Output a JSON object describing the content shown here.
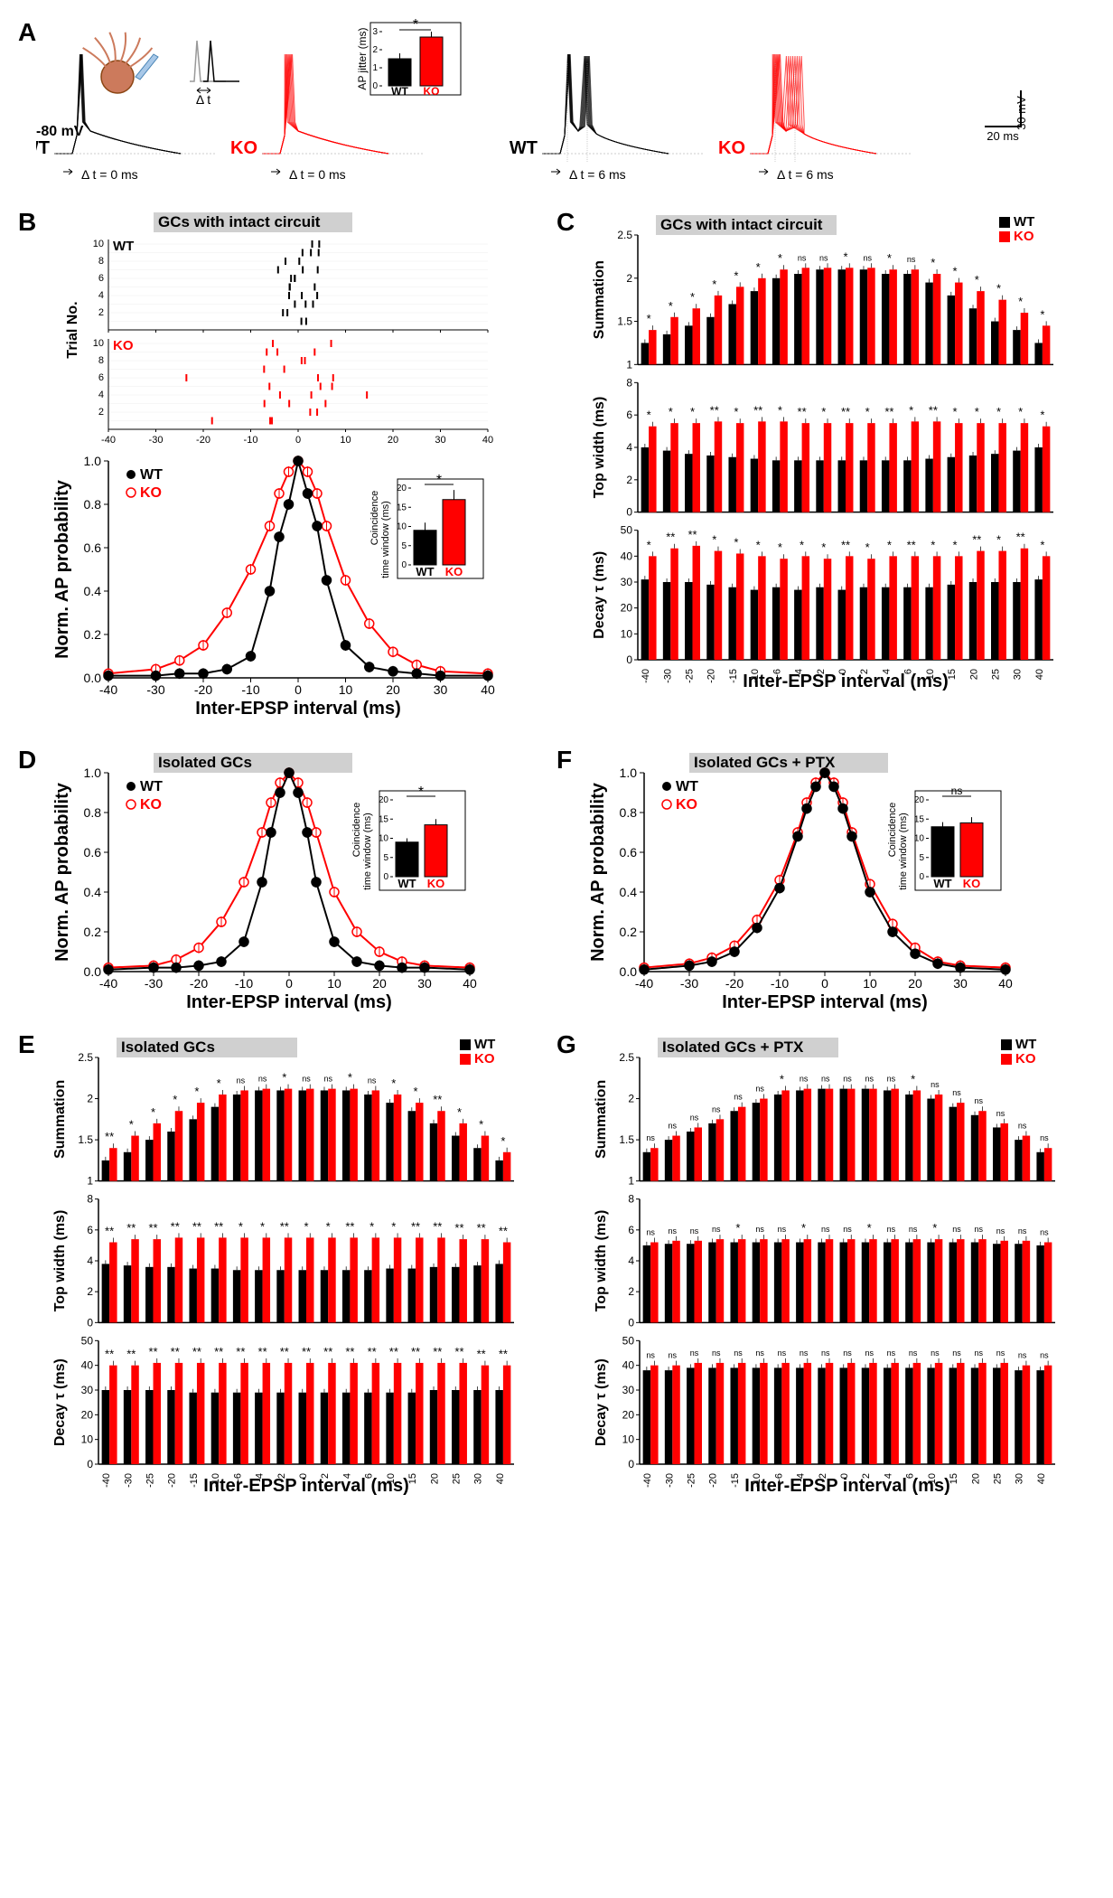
{
  "colors": {
    "wt": "#000000",
    "ko": "#ff0000",
    "bg": "#ffffff",
    "grid": "#e0e0e0",
    "titlebg": "#d0d0d0",
    "neuron": "#cc7a5c"
  },
  "panelA": {
    "label": "A",
    "vm_label": "-80 mV",
    "genotypes": [
      "WT",
      "KO"
    ],
    "dt_labels": [
      "Δ t = 0 ms",
      "Δ t = 0 ms",
      "Δ t = 6 ms",
      "Δ t = 6 ms"
    ],
    "inset_diagram_label": "Δ t",
    "scale_x": "20 ms",
    "scale_y": "30 mV",
    "jitter_bar": {
      "ylabel": "AP jitter (ms)",
      "categories": [
        "WT",
        "KO"
      ],
      "values": [
        1.5,
        2.7
      ],
      "errors": [
        0.3,
        0.3
      ],
      "ymax": 3,
      "sig": "*",
      "colors": [
        "#000000",
        "#ff0000"
      ]
    }
  },
  "panelB": {
    "label": "B",
    "title": "GCs with intact circuit",
    "raster_ylabel": "Trial No.",
    "raster_xlim": [
      -40,
      40
    ],
    "raster_yticks": [
      2,
      4,
      6,
      8,
      10
    ],
    "prob_ylabel": "Norm. AP probability",
    "prob_xlabel": "Inter-EPSP interval (ms)",
    "xticks": [
      -40,
      -30,
      -20,
      -10,
      0,
      10,
      20,
      30,
      40
    ],
    "yticks": [
      0.0,
      0.2,
      0.4,
      0.6,
      0.8,
      1.0
    ],
    "wt_points": [
      {
        "x": -40,
        "y": 0.01
      },
      {
        "x": -30,
        "y": 0.01
      },
      {
        "x": -25,
        "y": 0.02
      },
      {
        "x": -20,
        "y": 0.02
      },
      {
        "x": -15,
        "y": 0.04
      },
      {
        "x": -10,
        "y": 0.1
      },
      {
        "x": -6,
        "y": 0.4
      },
      {
        "x": -4,
        "y": 0.65
      },
      {
        "x": -2,
        "y": 0.8
      },
      {
        "x": 0,
        "y": 1.0
      },
      {
        "x": 2,
        "y": 0.85
      },
      {
        "x": 4,
        "y": 0.7
      },
      {
        "x": 6,
        "y": 0.45
      },
      {
        "x": 10,
        "y": 0.15
      },
      {
        "x": 15,
        "y": 0.05
      },
      {
        "x": 20,
        "y": 0.03
      },
      {
        "x": 25,
        "y": 0.02
      },
      {
        "x": 30,
        "y": 0.01
      },
      {
        "x": 40,
        "y": 0.01
      }
    ],
    "ko_points": [
      {
        "x": -40,
        "y": 0.02
      },
      {
        "x": -30,
        "y": 0.04
      },
      {
        "x": -25,
        "y": 0.08
      },
      {
        "x": -20,
        "y": 0.15
      },
      {
        "x": -15,
        "y": 0.3
      },
      {
        "x": -10,
        "y": 0.5
      },
      {
        "x": -6,
        "y": 0.7
      },
      {
        "x": -4,
        "y": 0.85
      },
      {
        "x": -2,
        "y": 0.95
      },
      {
        "x": 0,
        "y": 1.0
      },
      {
        "x": 2,
        "y": 0.95
      },
      {
        "x": 4,
        "y": 0.85
      },
      {
        "x": 6,
        "y": 0.7
      },
      {
        "x": 10,
        "y": 0.45
      },
      {
        "x": 15,
        "y": 0.25
      },
      {
        "x": 20,
        "y": 0.12
      },
      {
        "x": 25,
        "y": 0.06
      },
      {
        "x": 30,
        "y": 0.03
      },
      {
        "x": 40,
        "y": 0.02
      }
    ],
    "inset_bar": {
      "ylabel": "Coincidence\ntime window (ms)",
      "categories": [
        "WT",
        "KO"
      ],
      "values": [
        9,
        17
      ],
      "errors": [
        2,
        2.5
      ],
      "ymax": 20,
      "sig": "*",
      "colors": [
        "#000000",
        "#ff0000"
      ]
    }
  },
  "panelC": {
    "label": "C",
    "title": "GCs with intact circuit",
    "xlabel": "Inter-EPSP interval (ms)",
    "categories": [
      "-40",
      "-30",
      "-25",
      "-20",
      "-15",
      "-10",
      "-6",
      "-4",
      "-2",
      "0",
      "2",
      "4",
      "6",
      "10",
      "15",
      "20",
      "25",
      "30",
      "40"
    ],
    "summation": {
      "ylabel": "Summation",
      "yticks": [
        1.0,
        1.5,
        2.0,
        2.5
      ],
      "wt": [
        1.25,
        1.35,
        1.45,
        1.55,
        1.7,
        1.85,
        2.0,
        2.05,
        2.1,
        2.1,
        2.1,
        2.05,
        2.05,
        1.95,
        1.8,
        1.65,
        1.5,
        1.4,
        1.25
      ],
      "ko": [
        1.4,
        1.55,
        1.65,
        1.8,
        1.9,
        2.0,
        2.1,
        2.12,
        2.12,
        2.12,
        2.12,
        2.1,
        2.1,
        2.05,
        1.95,
        1.85,
        1.75,
        1.6,
        1.45
      ],
      "sig": [
        "*",
        "*",
        "*",
        "*",
        "*",
        "*",
        "*",
        "ns",
        "ns",
        "*",
        "ns",
        "*",
        "ns",
        "*",
        "*",
        "*",
        "*",
        "*",
        "*"
      ]
    },
    "topwidth": {
      "ylabel": "Top width (ms)",
      "yticks": [
        0,
        2,
        4,
        6,
        8
      ],
      "wt": [
        4.0,
        3.8,
        3.6,
        3.5,
        3.4,
        3.3,
        3.2,
        3.2,
        3.2,
        3.2,
        3.2,
        3.2,
        3.2,
        3.3,
        3.4,
        3.5,
        3.6,
        3.8,
        4.0
      ],
      "ko": [
        5.3,
        5.5,
        5.5,
        5.6,
        5.5,
        5.6,
        5.6,
        5.5,
        5.5,
        5.5,
        5.5,
        5.5,
        5.6,
        5.6,
        5.5,
        5.5,
        5.5,
        5.5,
        5.3
      ],
      "sig": [
        "*",
        "*",
        "*",
        "**",
        "*",
        "**",
        "*",
        "**",
        "*",
        "**",
        "*",
        "**",
        "*",
        "**",
        "*",
        "*",
        "*",
        "*",
        "*"
      ]
    },
    "decay": {
      "ylabel": "Decay τ (ms)",
      "yticks": [
        0,
        10,
        20,
        30,
        40,
        50
      ],
      "wt": [
        31,
        30,
        30,
        29,
        28,
        27,
        28,
        27,
        28,
        27,
        28,
        28,
        28,
        28,
        29,
        30,
        30,
        30,
        31
      ],
      "ko": [
        40,
        43,
        44,
        42,
        41,
        40,
        39,
        40,
        39,
        40,
        39,
        40,
        40,
        40,
        40,
        42,
        42,
        43,
        40
      ],
      "sig": [
        "*",
        "**",
        "**",
        "*",
        "*",
        "*",
        "*",
        "*",
        "*",
        "**",
        "*",
        "*",
        "**",
        "*",
        "*",
        "**",
        "*",
        "**",
        "*"
      ]
    }
  },
  "panelD": {
    "label": "D",
    "title": "Isolated GCs",
    "xlabel": "Inter-EPSP interval (ms)",
    "ylabel": "Norm. AP probability",
    "xticks": [
      -40,
      -30,
      -20,
      -10,
      0,
      10,
      20,
      30,
      40
    ],
    "yticks": [
      0.0,
      0.2,
      0.4,
      0.6,
      0.8,
      1.0
    ],
    "wt_points": [
      {
        "x": -40,
        "y": 0.01
      },
      {
        "x": -30,
        "y": 0.02
      },
      {
        "x": -25,
        "y": 0.02
      },
      {
        "x": -20,
        "y": 0.03
      },
      {
        "x": -15,
        "y": 0.05
      },
      {
        "x": -10,
        "y": 0.15
      },
      {
        "x": -6,
        "y": 0.45
      },
      {
        "x": -4,
        "y": 0.7
      },
      {
        "x": -2,
        "y": 0.9
      },
      {
        "x": 0,
        "y": 1.0
      },
      {
        "x": 2,
        "y": 0.9
      },
      {
        "x": 4,
        "y": 0.7
      },
      {
        "x": 6,
        "y": 0.45
      },
      {
        "x": 10,
        "y": 0.15
      },
      {
        "x": 15,
        "y": 0.05
      },
      {
        "x": 20,
        "y": 0.03
      },
      {
        "x": 25,
        "y": 0.02
      },
      {
        "x": 30,
        "y": 0.02
      },
      {
        "x": 40,
        "y": 0.01
      }
    ],
    "ko_points": [
      {
        "x": -40,
        "y": 0.02
      },
      {
        "x": -30,
        "y": 0.03
      },
      {
        "x": -25,
        "y": 0.06
      },
      {
        "x": -20,
        "y": 0.12
      },
      {
        "x": -15,
        "y": 0.25
      },
      {
        "x": -10,
        "y": 0.45
      },
      {
        "x": -6,
        "y": 0.7
      },
      {
        "x": -4,
        "y": 0.85
      },
      {
        "x": -2,
        "y": 0.95
      },
      {
        "x": 0,
        "y": 1.0
      },
      {
        "x": 2,
        "y": 0.95
      },
      {
        "x": 4,
        "y": 0.85
      },
      {
        "x": 6,
        "y": 0.7
      },
      {
        "x": 10,
        "y": 0.4
      },
      {
        "x": 15,
        "y": 0.2
      },
      {
        "x": 20,
        "y": 0.1
      },
      {
        "x": 25,
        "y": 0.05
      },
      {
        "x": 30,
        "y": 0.03
      },
      {
        "x": 40,
        "y": 0.02
      }
    ],
    "inset_bar": {
      "ylabel": "Coincidence\ntime window (ms)",
      "categories": [
        "WT",
        "KO"
      ],
      "values": [
        9,
        13.5
      ],
      "errors": [
        1,
        1.5
      ],
      "ymax": 20,
      "sig": "*",
      "colors": [
        "#000000",
        "#ff0000"
      ]
    }
  },
  "panelE": {
    "label": "E",
    "title": "Isolated GCs",
    "xlabel": "Inter-EPSP interval (ms)",
    "categories": [
      "-40",
      "-30",
      "-25",
      "-20",
      "-15",
      "-10",
      "-6",
      "-4",
      "-2",
      "0",
      "2",
      "4",
      "6",
      "10",
      "15",
      "20",
      "25",
      "30",
      "40"
    ],
    "summation": {
      "ylabel": "Summation",
      "yticks": [
        1.0,
        1.5,
        2.0,
        2.5
      ],
      "wt": [
        1.25,
        1.35,
        1.5,
        1.6,
        1.75,
        1.9,
        2.05,
        2.1,
        2.1,
        2.1,
        2.1,
        2.1,
        2.05,
        1.95,
        1.85,
        1.7,
        1.55,
        1.4,
        1.25
      ],
      "ko": [
        1.4,
        1.55,
        1.7,
        1.85,
        1.95,
        2.05,
        2.1,
        2.12,
        2.12,
        2.12,
        2.12,
        2.12,
        2.1,
        2.05,
        1.95,
        1.85,
        1.7,
        1.55,
        1.35
      ],
      "sig": [
        "**",
        "*",
        "*",
        "*",
        "*",
        "*",
        "ns",
        "ns",
        "*",
        "ns",
        "ns",
        "*",
        "ns",
        "*",
        "*",
        "**",
        "*",
        "*",
        "*"
      ]
    },
    "topwidth": {
      "ylabel": "Top width (ms)",
      "yticks": [
        0,
        2,
        4,
        6,
        8
      ],
      "wt": [
        3.8,
        3.7,
        3.6,
        3.6,
        3.5,
        3.5,
        3.4,
        3.4,
        3.4,
        3.4,
        3.4,
        3.4,
        3.4,
        3.5,
        3.5,
        3.6,
        3.6,
        3.7,
        3.8
      ],
      "ko": [
        5.2,
        5.4,
        5.4,
        5.5,
        5.5,
        5.5,
        5.5,
        5.5,
        5.5,
        5.5,
        5.5,
        5.5,
        5.5,
        5.5,
        5.5,
        5.5,
        5.4,
        5.4,
        5.2
      ],
      "sig": [
        "**",
        "**",
        "**",
        "**",
        "**",
        "**",
        "*",
        "*",
        "**",
        "*",
        "*",
        "**",
        "*",
        "*",
        "**",
        "**",
        "**",
        "**",
        "**"
      ]
    },
    "decay": {
      "ylabel": "Decay τ (ms)",
      "yticks": [
        0,
        10,
        20,
        30,
        40,
        50
      ],
      "wt": [
        30,
        30,
        30,
        30,
        29,
        29,
        29,
        29,
        29,
        29,
        29,
        29,
        29,
        29,
        29,
        30,
        30,
        30,
        30
      ],
      "ko": [
        40,
        40,
        41,
        41,
        41,
        41,
        41,
        41,
        41,
        41,
        41,
        41,
        41,
        41,
        41,
        41,
        41,
        40,
        40
      ],
      "sig": [
        "**",
        "**",
        "**",
        "**",
        "**",
        "**",
        "**",
        "**",
        "**",
        "**",
        "**",
        "**",
        "**",
        "**",
        "**",
        "**",
        "**",
        "**",
        "**"
      ]
    }
  },
  "panelF": {
    "label": "F",
    "title": "Isolated GCs + PTX",
    "xlabel": "Inter-EPSP interval (ms)",
    "ylabel": "Norm. AP probability",
    "xticks": [
      -40,
      -30,
      -20,
      -10,
      0,
      10,
      20,
      30,
      40
    ],
    "yticks": [
      0.0,
      0.2,
      0.4,
      0.6,
      0.8,
      1.0
    ],
    "wt_points": [
      {
        "x": -40,
        "y": 0.01
      },
      {
        "x": -30,
        "y": 0.03
      },
      {
        "x": -25,
        "y": 0.05
      },
      {
        "x": -20,
        "y": 0.1
      },
      {
        "x": -15,
        "y": 0.22
      },
      {
        "x": -10,
        "y": 0.42
      },
      {
        "x": -6,
        "y": 0.68
      },
      {
        "x": -4,
        "y": 0.82
      },
      {
        "x": -2,
        "y": 0.93
      },
      {
        "x": 0,
        "y": 1.0
      },
      {
        "x": 2,
        "y": 0.93
      },
      {
        "x": 4,
        "y": 0.82
      },
      {
        "x": 6,
        "y": 0.68
      },
      {
        "x": 10,
        "y": 0.4
      },
      {
        "x": 15,
        "y": 0.2
      },
      {
        "x": 20,
        "y": 0.09
      },
      {
        "x": 25,
        "y": 0.04
      },
      {
        "x": 30,
        "y": 0.02
      },
      {
        "x": 40,
        "y": 0.01
      }
    ],
    "ko_points": [
      {
        "x": -40,
        "y": 0.02
      },
      {
        "x": -30,
        "y": 0.04
      },
      {
        "x": -25,
        "y": 0.07
      },
      {
        "x": -20,
        "y": 0.13
      },
      {
        "x": -15,
        "y": 0.26
      },
      {
        "x": -10,
        "y": 0.46
      },
      {
        "x": -6,
        "y": 0.7
      },
      {
        "x": -4,
        "y": 0.85
      },
      {
        "x": -2,
        "y": 0.95
      },
      {
        "x": 0,
        "y": 1.0
      },
      {
        "x": 2,
        "y": 0.95
      },
      {
        "x": 4,
        "y": 0.85
      },
      {
        "x": 6,
        "y": 0.7
      },
      {
        "x": 10,
        "y": 0.44
      },
      {
        "x": 15,
        "y": 0.24
      },
      {
        "x": 20,
        "y": 0.12
      },
      {
        "x": 25,
        "y": 0.05
      },
      {
        "x": 30,
        "y": 0.03
      },
      {
        "x": 40,
        "y": 0.02
      }
    ],
    "inset_bar": {
      "ylabel": "Coincidence\ntime window (ms)",
      "categories": [
        "WT",
        "KO"
      ],
      "values": [
        13,
        14
      ],
      "errors": [
        1.2,
        1.5
      ],
      "ymax": 20,
      "sig": "ns",
      "colors": [
        "#000000",
        "#ff0000"
      ]
    }
  },
  "panelG": {
    "label": "G",
    "title": "Isolated GCs + PTX",
    "xlabel": "Inter-EPSP interval (ms)",
    "categories": [
      "-40",
      "-30",
      "-25",
      "-20",
      "-15",
      "-10",
      "-6",
      "-4",
      "-2",
      "0",
      "2",
      "4",
      "6",
      "10",
      "15",
      "20",
      "25",
      "30",
      "40"
    ],
    "summation": {
      "ylabel": "Summation",
      "yticks": [
        1.0,
        1.5,
        2.0,
        2.5
      ],
      "wt": [
        1.35,
        1.5,
        1.6,
        1.7,
        1.85,
        1.95,
        2.05,
        2.1,
        2.12,
        2.12,
        2.12,
        2.1,
        2.05,
        2.0,
        1.9,
        1.8,
        1.65,
        1.5,
        1.35
      ],
      "ko": [
        1.4,
        1.55,
        1.65,
        1.75,
        1.9,
        2.0,
        2.1,
        2.12,
        2.12,
        2.12,
        2.12,
        2.12,
        2.1,
        2.05,
        1.95,
        1.85,
        1.7,
        1.55,
        1.4
      ],
      "sig": [
        "ns",
        "ns",
        "ns",
        "ns",
        "ns",
        "ns",
        "*",
        "ns",
        "ns",
        "ns",
        "ns",
        "ns",
        "*",
        "ns",
        "ns",
        "ns",
        "ns",
        "ns",
        "ns"
      ]
    },
    "topwidth": {
      "ylabel": "Top width (ms)",
      "yticks": [
        0,
        2,
        4,
        6,
        8
      ],
      "wt": [
        5.0,
        5.1,
        5.1,
        5.2,
        5.2,
        5.2,
        5.2,
        5.2,
        5.2,
        5.2,
        5.2,
        5.2,
        5.2,
        5.2,
        5.2,
        5.2,
        5.1,
        5.1,
        5.0
      ],
      "ko": [
        5.2,
        5.3,
        5.3,
        5.4,
        5.4,
        5.4,
        5.4,
        5.4,
        5.4,
        5.4,
        5.4,
        5.4,
        5.4,
        5.4,
        5.4,
        5.4,
        5.3,
        5.3,
        5.2
      ],
      "sig": [
        "ns",
        "ns",
        "ns",
        "ns",
        "*",
        "ns",
        "ns",
        "*",
        "ns",
        "ns",
        "*",
        "ns",
        "ns",
        "*",
        "ns",
        "ns",
        "ns",
        "ns",
        "ns"
      ]
    },
    "decay": {
      "ylabel": "Decay τ (ms)",
      "yticks": [
        0,
        10,
        20,
        30,
        40,
        50
      ],
      "wt": [
        38,
        38,
        39,
        39,
        39,
        39,
        39,
        39,
        39,
        39,
        39,
        39,
        39,
        39,
        39,
        39,
        39,
        38,
        38
      ],
      "ko": [
        40,
        40,
        41,
        41,
        41,
        41,
        41,
        41,
        41,
        41,
        41,
        41,
        41,
        41,
        41,
        41,
        41,
        40,
        40
      ],
      "sig": [
        "ns",
        "ns",
        "ns",
        "ns",
        "ns",
        "ns",
        "ns",
        "ns",
        "ns",
        "ns",
        "ns",
        "ns",
        "ns",
        "ns",
        "ns",
        "ns",
        "ns",
        "ns",
        "ns"
      ]
    }
  }
}
